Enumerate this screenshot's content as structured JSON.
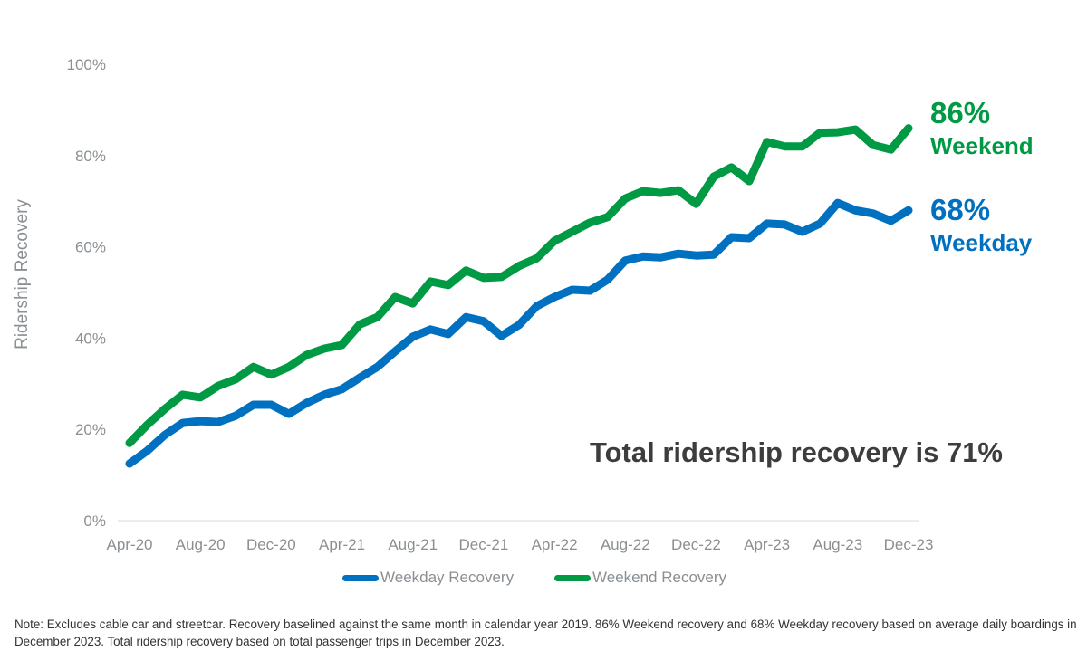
{
  "chart_data": {
    "type": "line",
    "ylabel": "Ridership Recovery",
    "xlabel": "",
    "ylim": [
      0,
      100
    ],
    "y_ticks": [
      "0%",
      "20%",
      "40%",
      "60%",
      "80%",
      "100%"
    ],
    "x_tick_labels": [
      "Apr-20",
      "Aug-20",
      "Dec-20",
      "Apr-21",
      "Aug-21",
      "Dec-21",
      "Apr-22",
      "Aug-22",
      "Dec-22",
      "Apr-23",
      "Aug-23",
      "Dec-23"
    ],
    "x": [
      "Apr-20",
      "May-20",
      "Jun-20",
      "Jul-20",
      "Aug-20",
      "Sep-20",
      "Oct-20",
      "Nov-20",
      "Dec-20",
      "Jan-21",
      "Feb-21",
      "Mar-21",
      "Apr-21",
      "May-21",
      "Jun-21",
      "Jul-21",
      "Aug-21",
      "Sep-21",
      "Oct-21",
      "Nov-21",
      "Dec-21",
      "Jan-22",
      "Feb-22",
      "Mar-22",
      "Apr-22",
      "May-22",
      "Jun-22",
      "Jul-22",
      "Aug-22",
      "Sep-22",
      "Oct-22",
      "Nov-22",
      "Dec-22",
      "Jan-23",
      "Feb-23",
      "Mar-23",
      "Apr-23",
      "May-23",
      "Jun-23",
      "Jul-23",
      "Aug-23",
      "Sep-23",
      "Oct-23",
      "Nov-23",
      "Dec-23"
    ],
    "grid": false,
    "legend_position": "bottom",
    "series": [
      {
        "name": "Weekday Recovery",
        "color": "#0070C0",
        "values": [
          12.5,
          15.3,
          18.8,
          21.4,
          21.8,
          21.6,
          23,
          25.4,
          25.4,
          23.4,
          25.8,
          27.6,
          28.8,
          31.3,
          33.7,
          37.1,
          40.3,
          41.9,
          40.9,
          44.6,
          43.7,
          40.5,
          42.9,
          47,
          49,
          50.6,
          50.4,
          52.8,
          57,
          57.9,
          57.7,
          58.5,
          58.1,
          58.3,
          62.1,
          61.9,
          65.1,
          64.9,
          63.3,
          65.1,
          69.6,
          68,
          67.3,
          65.7,
          68
        ]
      },
      {
        "name": "Weekend Recovery",
        "color": "#009A44",
        "values": [
          17,
          21,
          24.5,
          27.6,
          27,
          29.5,
          31,
          33.7,
          32,
          33.7,
          36.3,
          37.7,
          38.5,
          43,
          44.6,
          49,
          47.6,
          52.4,
          51.6,
          54.8,
          53.2,
          53.4,
          55.8,
          57.5,
          61.3,
          63.3,
          65.3,
          66.5,
          70.6,
          72.2,
          71.8,
          72.4,
          69.4,
          75.4,
          77.4,
          74.4,
          83,
          82,
          82,
          85,
          85.1,
          85.7,
          82.3,
          81.3,
          86
        ]
      }
    ],
    "annotations": {
      "weekend_value": "86%",
      "weekend_label": "Weekend",
      "weekday_value": "68%",
      "weekday_label": "Weekday",
      "total": "Total ridership recovery is 71%"
    }
  },
  "note": "Note: Excludes cable car and streetcar. Recovery baselined against the same month in calendar year 2019. 86% Weekend recovery and 68% Weekday recovery based on average daily boardings in December 2023. Total ridership recovery based on total passenger trips in December 2023."
}
